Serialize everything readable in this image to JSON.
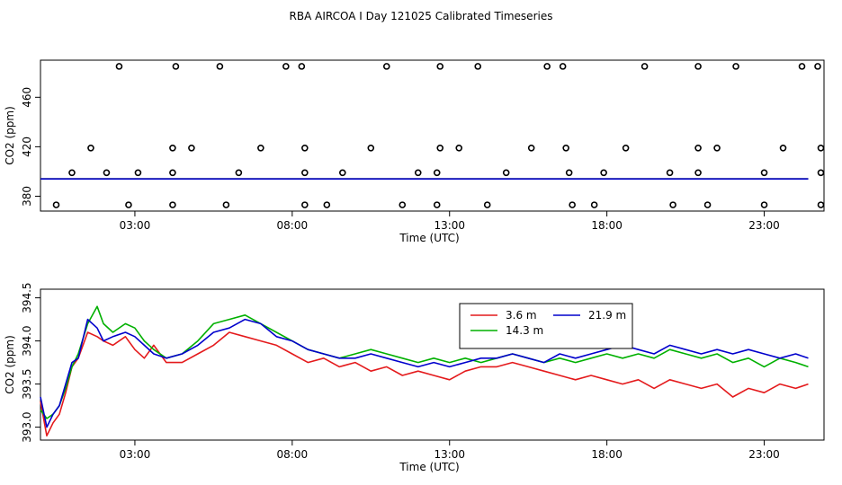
{
  "title": "RBA AIRCOA I  Day 121025  Calibrated Timeseries",
  "chart_data": [
    {
      "type": "scatter",
      "xlabel": "Time (UTC)",
      "ylabel": "CO2 (ppm)",
      "xlim": [
        0.0,
        24.9
      ],
      "ylim": [
        368,
        490
      ],
      "x_ticks": [
        3,
        8,
        13,
        18,
        23
      ],
      "x_tick_labels": [
        "03:00",
        "08:00",
        "13:00",
        "18:00",
        "23:00"
      ],
      "y_ticks": [
        380,
        420,
        460
      ],
      "y_tick_labels": [
        "380",
        "420",
        "460"
      ],
      "points": [
        [
          2.5,
          485
        ],
        [
          4.3,
          485
        ],
        [
          5.7,
          485
        ],
        [
          7.8,
          485
        ],
        [
          8.3,
          485
        ],
        [
          11.0,
          485
        ],
        [
          12.7,
          485
        ],
        [
          13.9,
          485
        ],
        [
          16.1,
          485
        ],
        [
          16.6,
          485
        ],
        [
          19.2,
          485
        ],
        [
          20.9,
          485
        ],
        [
          22.1,
          485
        ],
        [
          24.2,
          485
        ],
        [
          24.7,
          485
        ],
        [
          1.6,
          419
        ],
        [
          4.2,
          419
        ],
        [
          4.8,
          419
        ],
        [
          7.0,
          419
        ],
        [
          8.4,
          419
        ],
        [
          10.5,
          419
        ],
        [
          12.7,
          419
        ],
        [
          13.3,
          419
        ],
        [
          15.6,
          419
        ],
        [
          16.7,
          419
        ],
        [
          18.6,
          419
        ],
        [
          20.9,
          419
        ],
        [
          21.5,
          419
        ],
        [
          23.6,
          419
        ],
        [
          24.8,
          419
        ],
        [
          1.0,
          399
        ],
        [
          2.1,
          399
        ],
        [
          3.1,
          399
        ],
        [
          4.2,
          399
        ],
        [
          6.3,
          399
        ],
        [
          8.4,
          399
        ],
        [
          9.6,
          399
        ],
        [
          12.0,
          399
        ],
        [
          12.6,
          399
        ],
        [
          14.8,
          399
        ],
        [
          16.8,
          399
        ],
        [
          17.9,
          399
        ],
        [
          20.0,
          399
        ],
        [
          20.9,
          399
        ],
        [
          23.0,
          399
        ],
        [
          24.8,
          399
        ],
        [
          0.5,
          373
        ],
        [
          2.8,
          373
        ],
        [
          4.2,
          373
        ],
        [
          5.9,
          373
        ],
        [
          8.4,
          373
        ],
        [
          9.1,
          373
        ],
        [
          11.5,
          373
        ],
        [
          12.6,
          373
        ],
        [
          14.2,
          373
        ],
        [
          16.9,
          373
        ],
        [
          17.6,
          373
        ],
        [
          20.1,
          373
        ],
        [
          21.2,
          373
        ],
        [
          23.0,
          373
        ],
        [
          24.8,
          373
        ]
      ],
      "series": [
        {
          "name": "3.6 m",
          "color": "#e41a1c",
          "const": 394.0
        },
        {
          "name": "14.3 m",
          "color": "#00b000",
          "const": 394.0
        },
        {
          "name": "21.9 m",
          "color": "#0000cc",
          "const": 394.0
        }
      ]
    },
    {
      "type": "line",
      "xlabel": "Time (UTC)",
      "ylabel": "CO2 (ppm)",
      "xlim": [
        0.0,
        24.9
      ],
      "ylim": [
        392.85,
        394.6
      ],
      "x_ticks": [
        3,
        8,
        13,
        18,
        23
      ],
      "x_tick_labels": [
        "03:00",
        "08:00",
        "13:00",
        "18:00",
        "23:00"
      ],
      "y_ticks": [
        393.0,
        393.5,
        394.0,
        394.5
      ],
      "y_tick_labels": [
        "393.0",
        "393.5",
        "394.0",
        "394.5"
      ],
      "legend": "top-center",
      "series": [
        {
          "name": "3.6 m",
          "color": "#e41a1c",
          "x": [
            0.0,
            0.2,
            0.4,
            0.6,
            0.8,
            1.0,
            1.2,
            1.5,
            1.8,
            2.0,
            2.3,
            2.7,
            3.0,
            3.3,
            3.6,
            4.0,
            4.5,
            5.0,
            5.5,
            6.0,
            6.5,
            7.0,
            7.5,
            8.0,
            8.5,
            9.0,
            9.5,
            10.0,
            10.5,
            11.0,
            11.5,
            12.0,
            12.5,
            13.0,
            13.5,
            14.0,
            14.5,
            15.0,
            15.5,
            16.0,
            16.5,
            17.0,
            17.5,
            18.0,
            18.5,
            19.0,
            19.5,
            20.0,
            20.5,
            21.0,
            21.5,
            22.0,
            22.5,
            23.0,
            23.5,
            24.0,
            24.4
          ],
          "y": [
            393.3,
            392.9,
            393.05,
            393.15,
            393.4,
            393.7,
            393.8,
            394.1,
            394.05,
            394.0,
            393.95,
            394.05,
            393.9,
            393.8,
            393.95,
            393.75,
            393.75,
            393.85,
            393.95,
            394.1,
            394.05,
            394.0,
            393.95,
            393.85,
            393.75,
            393.8,
            393.7,
            393.75,
            393.65,
            393.7,
            393.6,
            393.65,
            393.6,
            393.55,
            393.65,
            393.7,
            393.7,
            393.75,
            393.7,
            393.65,
            393.6,
            393.55,
            393.6,
            393.55,
            393.5,
            393.55,
            393.45,
            393.55,
            393.5,
            393.45,
            393.5,
            393.35,
            393.45,
            393.4,
            393.5,
            393.45,
            393.5
          ]
        },
        {
          "name": "14.3 m",
          "color": "#00b000",
          "x": [
            0.0,
            0.2,
            0.4,
            0.6,
            0.8,
            1.0,
            1.2,
            1.5,
            1.8,
            2.0,
            2.3,
            2.7,
            3.0,
            3.3,
            3.6,
            4.0,
            4.5,
            5.0,
            5.5,
            6.0,
            6.5,
            7.0,
            7.5,
            8.0,
            8.5,
            9.0,
            9.5,
            10.0,
            10.5,
            11.0,
            11.5,
            12.0,
            12.5,
            13.0,
            13.5,
            14.0,
            14.5,
            15.0,
            15.5,
            16.0,
            16.5,
            17.0,
            17.5,
            18.0,
            18.5,
            19.0,
            19.5,
            20.0,
            20.5,
            21.0,
            21.5,
            22.0,
            22.5,
            23.0,
            23.5,
            24.0,
            24.4
          ],
          "y": [
            393.2,
            393.1,
            393.15,
            393.25,
            393.45,
            393.7,
            393.85,
            394.2,
            394.4,
            394.2,
            394.1,
            394.2,
            394.15,
            394.0,
            393.9,
            393.8,
            393.85,
            394.0,
            394.2,
            394.25,
            394.3,
            394.2,
            394.1,
            394.0,
            393.9,
            393.85,
            393.8,
            393.85,
            393.9,
            393.85,
            393.8,
            393.75,
            393.8,
            393.75,
            393.8,
            393.75,
            393.8,
            393.85,
            393.8,
            393.75,
            393.8,
            393.75,
            393.8,
            393.85,
            393.8,
            393.85,
            393.8,
            393.9,
            393.85,
            393.8,
            393.85,
            393.75,
            393.8,
            393.7,
            393.8,
            393.75,
            393.7
          ]
        },
        {
          "name": "21.9 m",
          "color": "#0000cc",
          "x": [
            0.0,
            0.2,
            0.4,
            0.6,
            0.8,
            1.0,
            1.2,
            1.5,
            1.8,
            2.0,
            2.3,
            2.7,
            3.0,
            3.3,
            3.6,
            4.0,
            4.5,
            5.0,
            5.5,
            6.0,
            6.5,
            7.0,
            7.5,
            8.0,
            8.5,
            9.0,
            9.5,
            10.0,
            10.5,
            11.0,
            11.5,
            12.0,
            12.5,
            13.0,
            13.5,
            14.0,
            14.5,
            15.0,
            15.5,
            16.0,
            16.5,
            17.0,
            17.5,
            18.0,
            18.5,
            19.0,
            19.5,
            20.0,
            20.5,
            21.0,
            21.5,
            22.0,
            22.5,
            23.0,
            23.5,
            24.0,
            24.4
          ],
          "y": [
            393.35,
            393.0,
            393.15,
            393.25,
            393.5,
            393.75,
            393.8,
            394.25,
            394.15,
            394.0,
            394.05,
            394.1,
            394.05,
            393.95,
            393.85,
            393.8,
            393.85,
            393.95,
            394.1,
            394.15,
            394.25,
            394.2,
            394.05,
            394.0,
            393.9,
            393.85,
            393.8,
            393.8,
            393.85,
            393.8,
            393.75,
            393.7,
            393.75,
            393.7,
            393.75,
            393.8,
            393.8,
            393.85,
            393.8,
            393.75,
            393.85,
            393.8,
            393.85,
            393.9,
            393.95,
            393.9,
            393.85,
            393.95,
            393.9,
            393.85,
            393.9,
            393.85,
            393.9,
            393.85,
            393.8,
            393.85,
            393.8
          ]
        }
      ]
    }
  ]
}
